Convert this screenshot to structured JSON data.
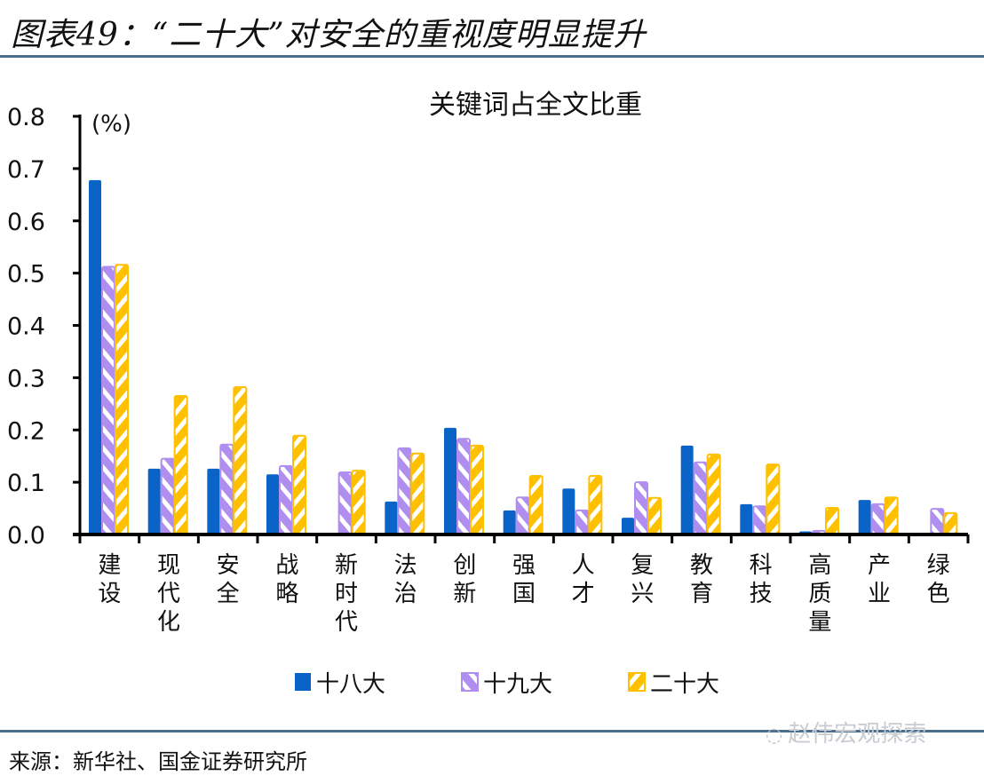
{
  "figure": {
    "title": "图表49：“二十大”对安全的重视度明显提升",
    "source": "来源：新华社、国金证券研究所",
    "watermark": "赵伟宏观探索"
  },
  "colors": {
    "rule": "#4a6e8e",
    "series_18": "#0a63c7",
    "series_19": "#b08ef0",
    "series_20": "#ffc000"
  },
  "chart_data": {
    "type": "bar",
    "title": "关键词占全文比重",
    "unit_label": "(%)",
    "xlabel": "",
    "ylabel": "(%)",
    "ylim": [
      0,
      0.8
    ],
    "yticks": [
      "0.0",
      "0.1",
      "0.2",
      "0.3",
      "0.4",
      "0.5",
      "0.6",
      "0.7",
      "0.8"
    ],
    "ytick_values": [
      0,
      0.1,
      0.2,
      0.3,
      0.4,
      0.5,
      0.6,
      0.7,
      0.8
    ],
    "grid": false,
    "legend_position": "bottom",
    "categories": [
      "建设",
      "现代化",
      "安全",
      "战略",
      "新时代",
      "法治",
      "创新",
      "强国",
      "人才",
      "复兴",
      "教育",
      "科技",
      "高质量",
      "产业",
      "绿色"
    ],
    "series": [
      {
        "name": "十八大",
        "pattern": "solid",
        "values": [
          0.678,
          0.126,
          0.126,
          0.115,
          0.003,
          0.063,
          0.204,
          0.046,
          0.088,
          0.032,
          0.17,
          0.058,
          0.006,
          0.066,
          0.003
        ]
      },
      {
        "name": "十九大",
        "pattern": "hatch-right",
        "values": [
          0.512,
          0.145,
          0.172,
          0.131,
          0.119,
          0.165,
          0.183,
          0.071,
          0.046,
          0.1,
          0.138,
          0.054,
          0.007,
          0.058,
          0.049
        ]
      },
      {
        "name": "二十大",
        "pattern": "hatch-left",
        "values": [
          0.516,
          0.265,
          0.282,
          0.189,
          0.122,
          0.155,
          0.17,
          0.112,
          0.112,
          0.07,
          0.153,
          0.134,
          0.051,
          0.071,
          0.041
        ]
      }
    ]
  }
}
